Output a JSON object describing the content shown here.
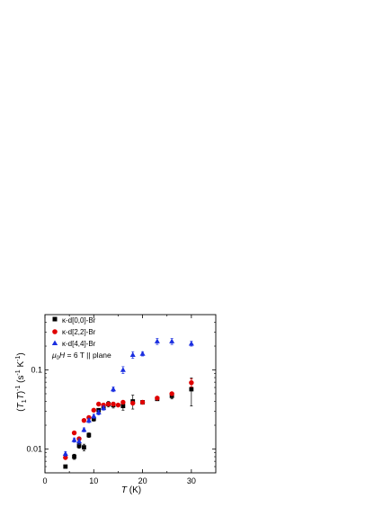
{
  "chart_data": {
    "type": "scatter",
    "xlabel": "T (K)",
    "ylabel": "(T1T)-1 (s-1 K-1)",
    "xlim": [
      0,
      35
    ],
    "ylim": [
      0.005,
      0.5
    ],
    "yscale": "log",
    "x_ticks": [
      "0",
      "10",
      "20",
      "30"
    ],
    "y_ticks": [
      "0.01",
      "0.1"
    ],
    "annotation": "μ0H = 6 T || plane",
    "legend_position": "top-left",
    "series": [
      {
        "name": "κ-d[0,0]-Br",
        "marker": "square",
        "color": "#000000",
        "points": [
          {
            "x": 4.2,
            "y": 0.006,
            "err": 0
          },
          {
            "x": 6,
            "y": 0.008,
            "err": 0.0006
          },
          {
            "x": 7,
            "y": 0.011,
            "err": 0.0008
          },
          {
            "x": 8,
            "y": 0.0105,
            "err": 0.001
          },
          {
            "x": 9,
            "y": 0.015,
            "err": 0.001
          },
          {
            "x": 10,
            "y": 0.024,
            "err": 0.0015
          },
          {
            "x": 11,
            "y": 0.031,
            "err": 0.0015
          },
          {
            "x": 12,
            "y": 0.034,
            "err": 0.002
          },
          {
            "x": 13,
            "y": 0.037,
            "err": 0.003
          },
          {
            "x": 14,
            "y": 0.036,
            "err": 0.003
          },
          {
            "x": 16,
            "y": 0.035,
            "err": 0.004
          },
          {
            "x": 18,
            "y": 0.04,
            "err": 0.008
          },
          {
            "x": 20,
            "y": 0.039,
            "err": 0.002
          },
          {
            "x": 23,
            "y": 0.043,
            "err": 0.002
          },
          {
            "x": 26,
            "y": 0.047,
            "err": 0.004
          },
          {
            "x": 30,
            "y": 0.057,
            "err": 0.022
          }
        ]
      },
      {
        "name": "κ-d[2,2]-Br",
        "marker": "circle",
        "color": "#e00000",
        "points": [
          {
            "x": 4.2,
            "y": 0.0078,
            "err": 0
          },
          {
            "x": 6,
            "y": 0.016,
            "err": 0
          },
          {
            "x": 7,
            "y": 0.0135,
            "err": 0
          },
          {
            "x": 8,
            "y": 0.023,
            "err": 0
          },
          {
            "x": 9,
            "y": 0.025,
            "err": 0
          },
          {
            "x": 10,
            "y": 0.031,
            "err": 0
          },
          {
            "x": 11,
            "y": 0.037,
            "err": 0
          },
          {
            "x": 12,
            "y": 0.036,
            "err": 0
          },
          {
            "x": 13,
            "y": 0.037,
            "err": 0
          },
          {
            "x": 14,
            "y": 0.037,
            "err": 0
          },
          {
            "x": 15,
            "y": 0.036,
            "err": 0
          },
          {
            "x": 16,
            "y": 0.039,
            "err": 0
          },
          {
            "x": 18,
            "y": 0.038,
            "err": 0
          },
          {
            "x": 20,
            "y": 0.039,
            "err": 0
          },
          {
            "x": 23,
            "y": 0.044,
            "err": 0
          },
          {
            "x": 26,
            "y": 0.05,
            "err": 0
          },
          {
            "x": 30,
            "y": 0.069,
            "err": 0.008
          }
        ]
      },
      {
        "name": "κ-d[4,4]-Br",
        "marker": "triangle",
        "color": "#1a2ee0",
        "points": [
          {
            "x": 4.2,
            "y": 0.0087,
            "err": 0.0006
          },
          {
            "x": 6,
            "y": 0.013,
            "err": 0.0008
          },
          {
            "x": 7,
            "y": 0.0125,
            "err": 0.001
          },
          {
            "x": 8,
            "y": 0.0175,
            "err": 0.001
          },
          {
            "x": 9,
            "y": 0.023,
            "err": 0.0015
          },
          {
            "x": 10,
            "y": 0.026,
            "err": 0.0015
          },
          {
            "x": 11,
            "y": 0.029,
            "err": 0.002
          },
          {
            "x": 12,
            "y": 0.033,
            "err": 0.002
          },
          {
            "x": 14,
            "y": 0.057,
            "err": 0.004
          },
          {
            "x": 16,
            "y": 0.1,
            "err": 0.01
          },
          {
            "x": 18,
            "y": 0.155,
            "err": 0.015
          },
          {
            "x": 20,
            "y": 0.16,
            "err": 0.01
          },
          {
            "x": 23,
            "y": 0.23,
            "err": 0.02
          },
          {
            "x": 26,
            "y": 0.23,
            "err": 0.02
          },
          {
            "x": 30,
            "y": 0.215,
            "err": 0.015
          }
        ]
      }
    ]
  }
}
